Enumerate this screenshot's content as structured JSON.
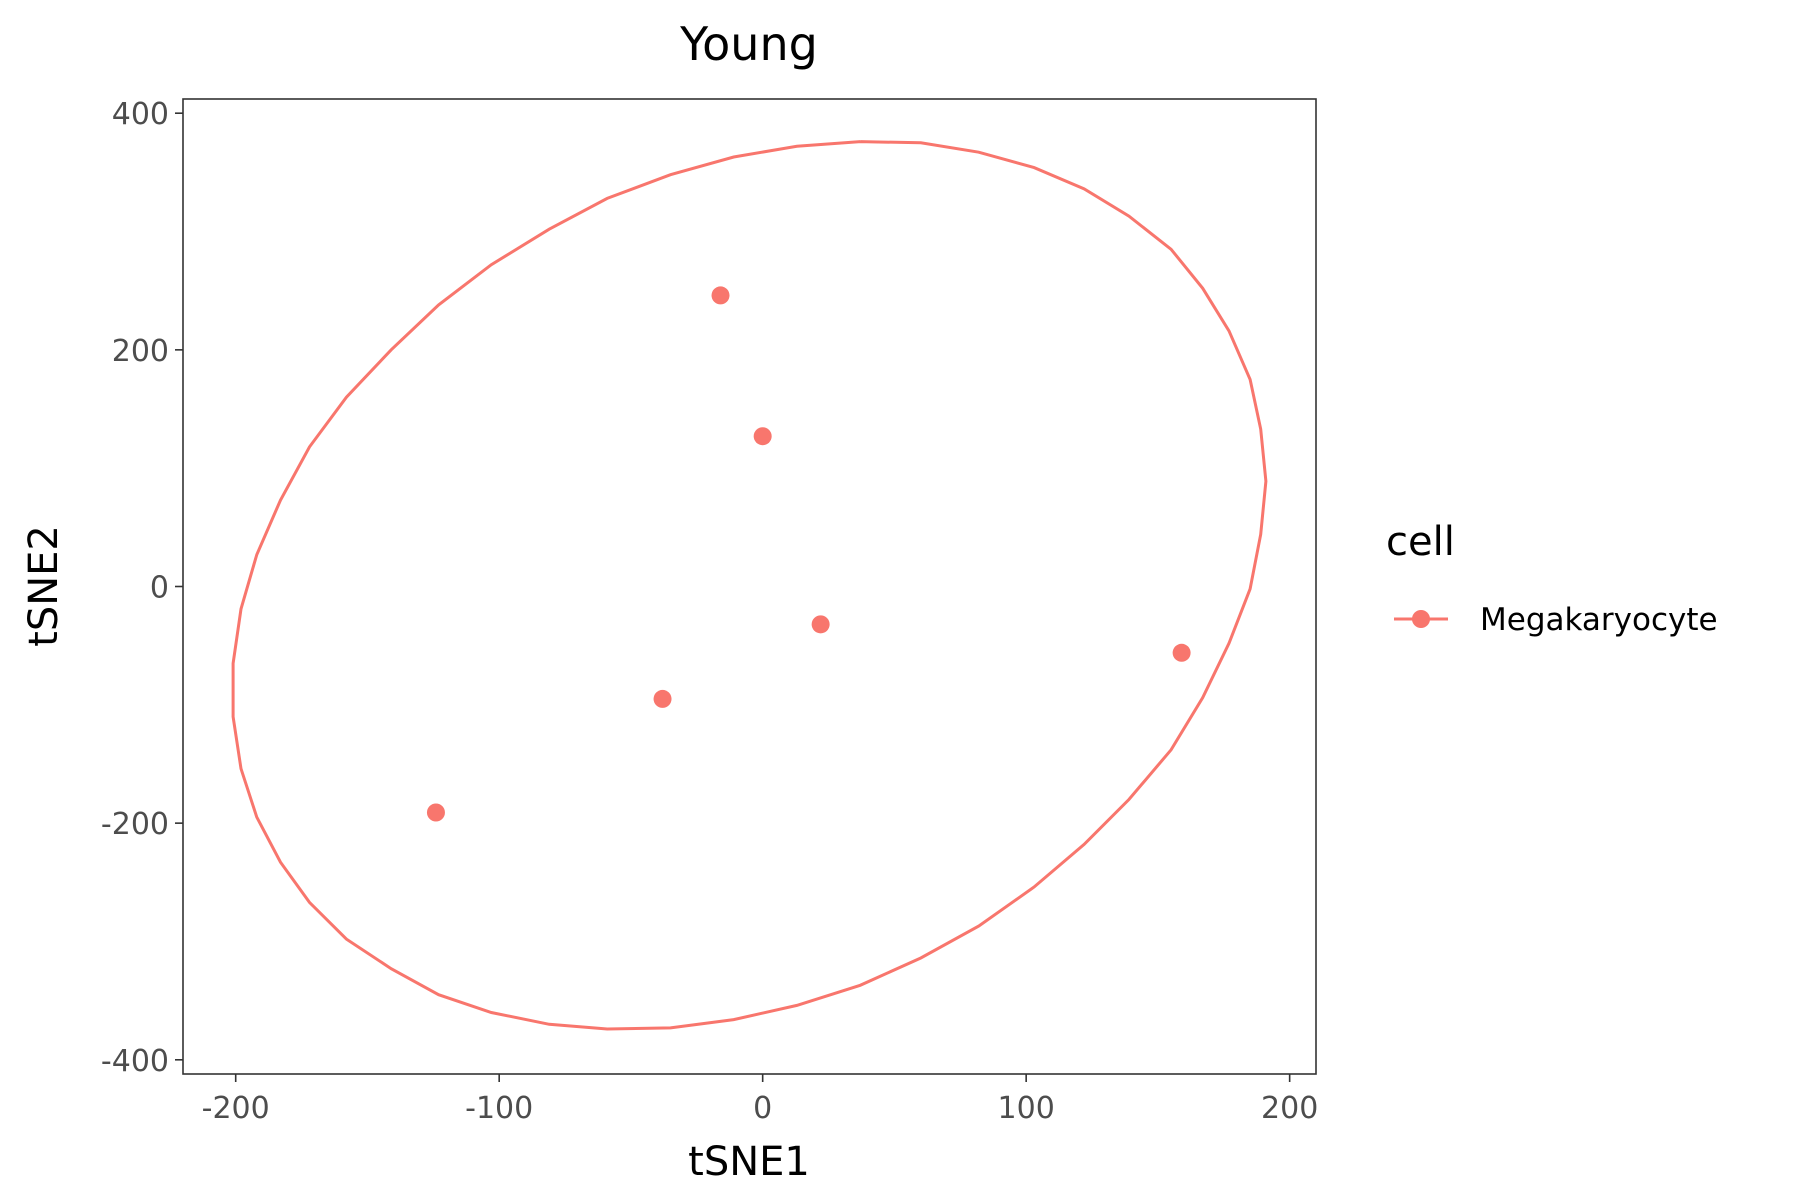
{
  "chart_data": {
    "type": "scatter",
    "title": "Young",
    "xlabel": "tSNE1",
    "ylabel": "tSNE2",
    "xlim": [
      -220,
      210
    ],
    "ylim": [
      -412,
      412
    ],
    "x_ticks": [
      -200,
      -100,
      0,
      100,
      200
    ],
    "y_ticks": [
      -400,
      -200,
      0,
      200,
      400
    ],
    "x_tick_labels": [
      "-200",
      "-100",
      "0",
      "100",
      "200"
    ],
    "y_tick_labels": [
      "-400",
      "-200",
      "0",
      "200",
      "400"
    ],
    "grid": false,
    "legend": {
      "title": "cell",
      "position": "right",
      "entries": [
        "Megakaryocyte"
      ]
    },
    "series": [
      {
        "name": "Megakaryocyte",
        "color": "#F8766D",
        "points": [
          {
            "x": -16,
            "y": 246
          },
          {
            "x": 0,
            "y": 127
          },
          {
            "x": 22,
            "y": -32
          },
          {
            "x": 159,
            "y": -56
          },
          {
            "x": -38,
            "y": -95
          },
          {
            "x": -124,
            "y": -191
          }
        ],
        "ellipse": [
          [
            37,
            376
          ],
          [
            60,
            375
          ],
          [
            82,
            367
          ],
          [
            103,
            354
          ],
          [
            122,
            336
          ],
          [
            139,
            313
          ],
          [
            155,
            285
          ],
          [
            167,
            252
          ],
          [
            177,
            216
          ],
          [
            185,
            175
          ],
          [
            189,
            133
          ],
          [
            191,
            89
          ],
          [
            189,
            44
          ],
          [
            185,
            -2
          ],
          [
            177,
            -48
          ],
          [
            167,
            -94
          ],
          [
            155,
            -138
          ],
          [
            139,
            -180
          ],
          [
            122,
            -218
          ],
          [
            103,
            -254
          ],
          [
            82,
            -287
          ],
          [
            60,
            -314
          ],
          [
            37,
            -337
          ],
          [
            13,
            -354
          ],
          [
            -11,
            -366
          ],
          [
            -35,
            -373
          ],
          [
            -59,
            -374
          ],
          [
            -81,
            -370
          ],
          [
            -103,
            -360
          ],
          [
            -123,
            -345
          ],
          [
            -141,
            -323
          ],
          [
            -158,
            -298
          ],
          [
            -172,
            -267
          ],
          [
            -183,
            -233
          ],
          [
            -192,
            -195
          ],
          [
            -198,
            -154
          ],
          [
            -201,
            -110
          ],
          [
            -201,
            -65
          ],
          [
            -198,
            -19
          ],
          [
            -192,
            27
          ],
          [
            -183,
            73
          ],
          [
            -172,
            118
          ],
          [
            -158,
            160
          ],
          [
            -141,
            200
          ],
          [
            -123,
            238
          ],
          [
            -103,
            272
          ],
          [
            -81,
            302
          ],
          [
            -59,
            328
          ],
          [
            -35,
            348
          ],
          [
            -11,
            363
          ],
          [
            13,
            372
          ],
          [
            37,
            376
          ]
        ]
      }
    ]
  }
}
